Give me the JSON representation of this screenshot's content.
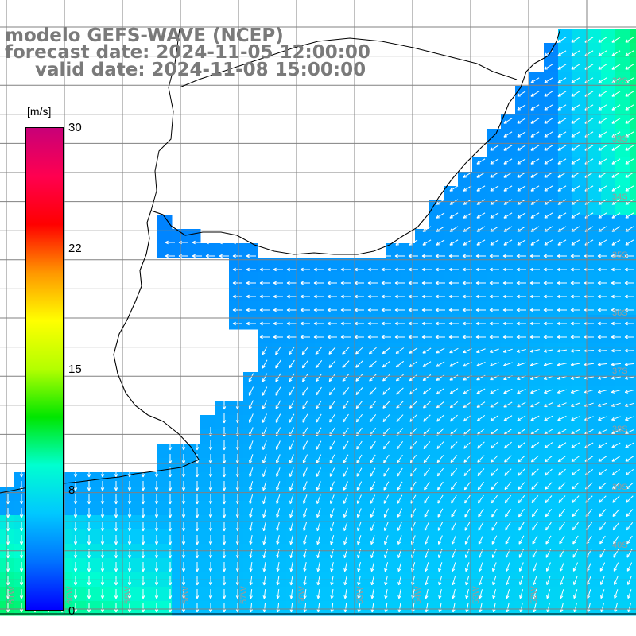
{
  "header": {
    "line1": "modelo GEFS-WAVE (NCEP)",
    "line2": "forecast date: 2024-11-05 12:00:00",
    "line3": "valid date: 2024-11-08 15:00:00"
  },
  "colorbar": {
    "units": "[m/s]",
    "ticks": [
      "30",
      "22",
      "15",
      "8",
      "0"
    ],
    "tick_values": [
      30,
      22,
      15,
      8,
      0
    ],
    "colors": [
      "#0000ff",
      "#0072ff",
      "#00c8ff",
      "#00ffd0",
      "#00e600",
      "#b4ff00",
      "#ffff00",
      "#ff9600",
      "#ff0000",
      "#ff0050",
      "#c80078"
    ]
  },
  "map": {
    "lat_labels": [
      "32S",
      "33S",
      "34S",
      "35S",
      "36S",
      "37S",
      "38S",
      "39S",
      "40S"
    ],
    "lon_labels": [
      "61W",
      "60W",
      "59W",
      "58W",
      "57W",
      "56W",
      "55W",
      "54W",
      "53W",
      "52W"
    ],
    "land_color": "#ffffff",
    "grid_color": "#808080"
  }
}
